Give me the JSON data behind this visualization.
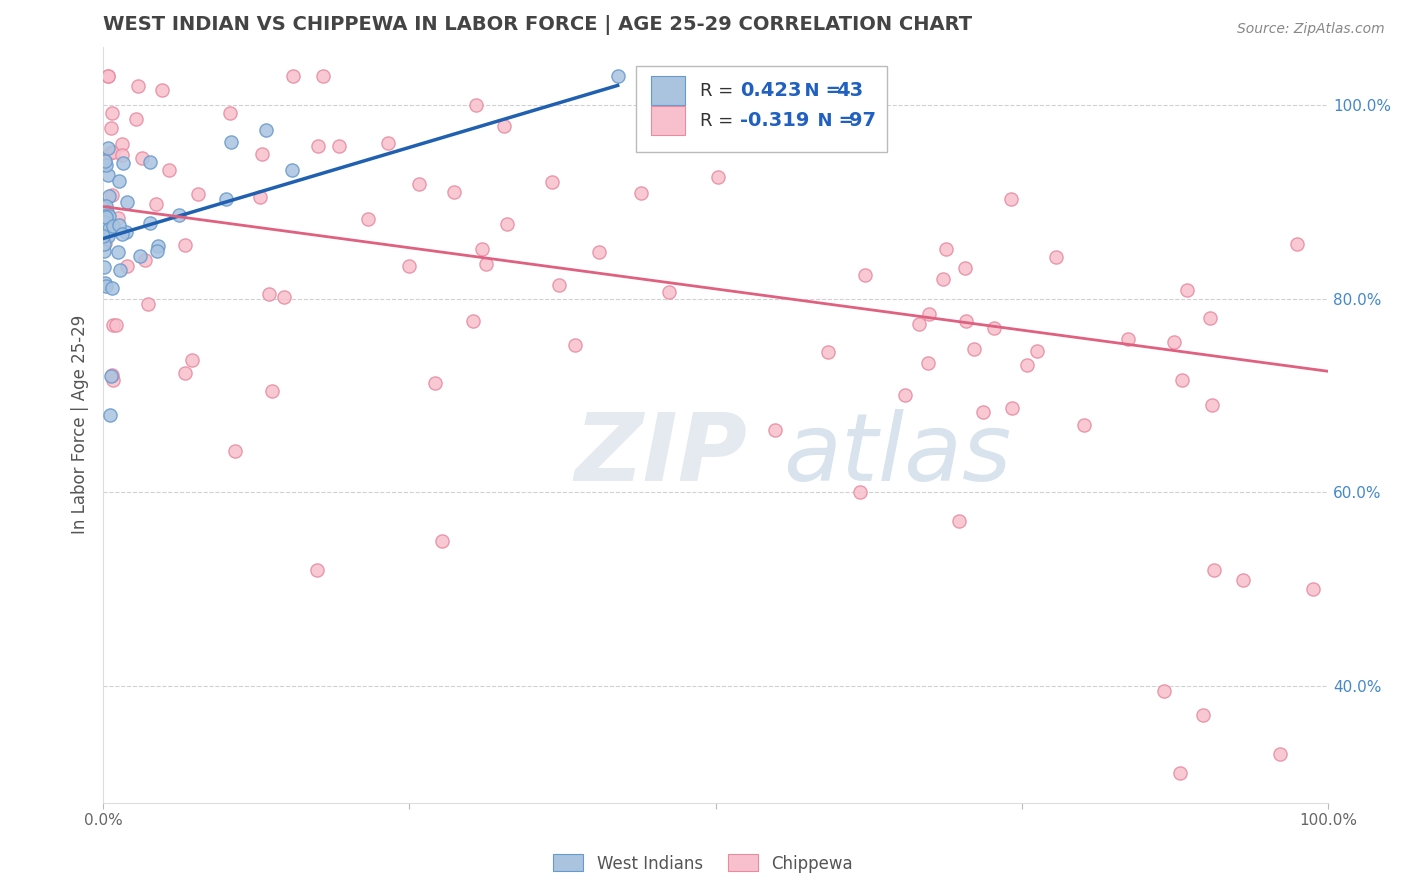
{
  "title": "WEST INDIAN VS CHIPPEWA IN LABOR FORCE | AGE 25-29 CORRELATION CHART",
  "source": "Source: ZipAtlas.com",
  "ylabel": "In Labor Force | Age 25-29",
  "xlim": [
    0.0,
    1.0
  ],
  "ylim": [
    0.28,
    1.06
  ],
  "xticks": [
    0.0,
    0.25,
    0.5,
    0.75,
    1.0
  ],
  "xticklabels": [
    "0.0%",
    "",
    "",
    "",
    "100.0%"
  ],
  "yticks": [
    0.4,
    0.6,
    0.8,
    1.0
  ],
  "yticklabels": [
    "40.0%",
    "60.0%",
    "80.0%",
    "100.0%"
  ],
  "blue_R": "0.423",
  "blue_N": "43",
  "pink_R": "-0.319",
  "pink_N": "97",
  "blue_line_x0": 0.0,
  "blue_line_x1": 0.42,
  "blue_line_y0": 0.862,
  "blue_line_y1": 1.02,
  "pink_line_x0": 0.0,
  "pink_line_x1": 1.0,
  "pink_line_y0": 0.895,
  "pink_line_y1": 0.725,
  "blue_color": "#aac4e0",
  "blue_edge_color": "#6699cc",
  "pink_color": "#f8c0cc",
  "pink_edge_color": "#e88aa0",
  "blue_line_color": "#2060b0",
  "pink_line_color": "#e06080",
  "legend_R_color": "#2060c0",
  "background_color": "#ffffff",
  "grid_color": "#cccccc",
  "title_color": "#444444",
  "ylabel_color": "#555555",
  "ytick_color": "#4488cc",
  "xtick_color": "#666666",
  "source_color": "#888888"
}
